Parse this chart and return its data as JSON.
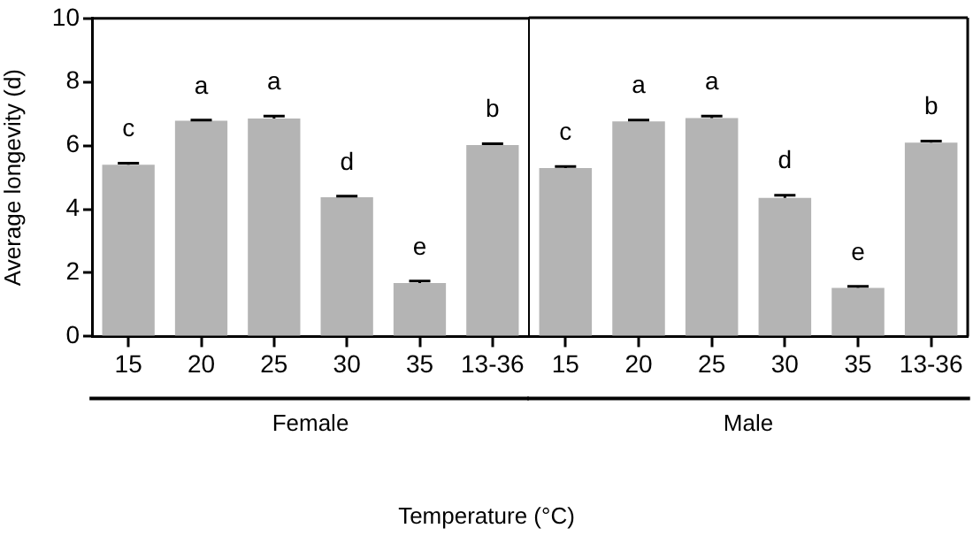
{
  "chart_data": [
    {
      "type": "bar",
      "xlabel": "Female",
      "ylabel": "Average longevity (d)",
      "categories": [
        "15",
        "20",
        "25",
        "30",
        "35",
        "13-36"
      ],
      "series": [
        {
          "color": "#b4b4b4",
          "values": [
            5.4,
            6.78,
            6.85,
            4.38,
            1.68,
            6.02
          ],
          "errors": [
            0.05,
            0.02,
            0.08,
            0.03,
            0.06,
            0.04
          ],
          "value_labels": [
            "c",
            "a",
            "a",
            "d",
            "e",
            "b"
          ]
        }
      ],
      "ylim": [
        0,
        10
      ],
      "yticks": [
        0,
        2,
        4,
        6,
        8,
        10
      ],
      "grid": false,
      "legend": false,
      "annotations": [
        "Temperature (°C)"
      ]
    },
    {
      "type": "bar",
      "xlabel": "Male",
      "categories": [
        "15",
        "20",
        "25",
        "30",
        "35",
        "13-36"
      ],
      "series": [
        {
          "color": "#b4b4b4",
          "values": [
            5.28,
            6.75,
            6.85,
            4.35,
            1.52,
            6.08
          ],
          "errors": [
            0.05,
            0.04,
            0.06,
            0.08,
            0.05,
            0.05
          ],
          "value_labels": [
            "c",
            "a",
            "a",
            "d",
            "e",
            "b"
          ]
        }
      ],
      "ylim": [
        0,
        10
      ],
      "yticks": [
        0,
        2,
        4,
        6,
        8,
        10
      ],
      "grid": false,
      "legend": false,
      "tick_labels": "x"
    }
  ]
}
